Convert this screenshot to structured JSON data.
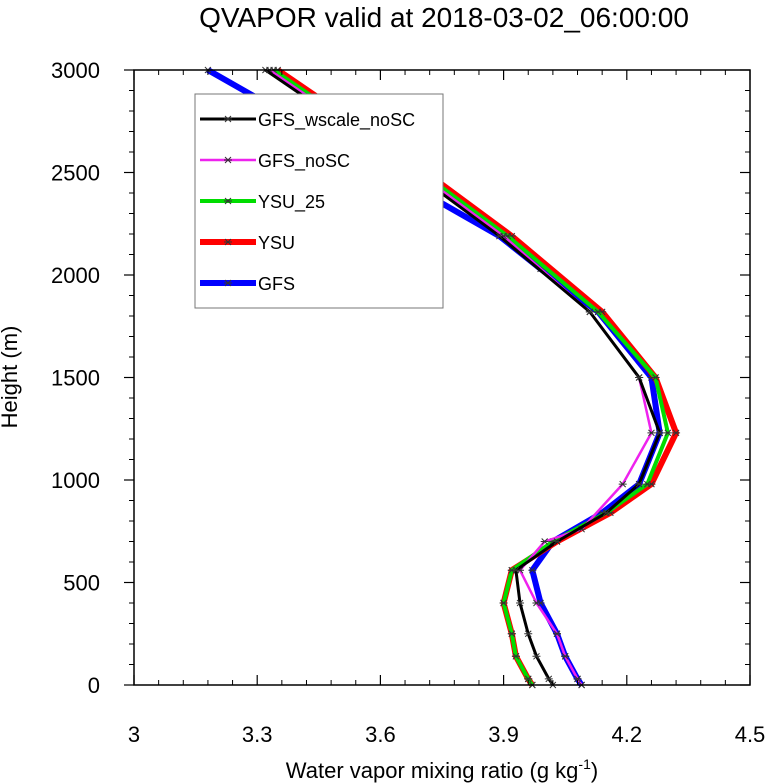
{
  "chart_data": {
    "type": "line",
    "title": "QVAPOR valid at 2018-03-02_06:00:00",
    "xlabel": "Water vapor mixing ratio (g kg",
    "xlabel_sup": "-1",
    "xlabel_end": ")",
    "ylabel": "Height (m)",
    "xlim": [
      3.0,
      4.5
    ],
    "ylim": [
      0,
      3000
    ],
    "xticks": [
      3.0,
      3.3,
      3.6,
      3.9,
      4.2,
      4.5
    ],
    "xtick_labels": [
      "3",
      "3.3",
      "3.6",
      "3.9",
      "4.2",
      "4.5"
    ],
    "yticks": [
      0,
      500,
      1000,
      1500,
      2000,
      2500,
      3000
    ],
    "ytick_labels": [
      "0",
      "500",
      "1000",
      "1500",
      "2000",
      "2500",
      "3000"
    ],
    "grid": false,
    "legend_position": "top-left inside",
    "series": [
      {
        "name": "GFS",
        "color": "#0000ff",
        "points": [
          [
            4.09,
            0
          ],
          [
            4.08,
            30
          ],
          [
            4.05,
            140
          ],
          [
            4.03,
            250
          ],
          [
            3.99,
            400
          ],
          [
            3.97,
            560
          ],
          [
            4.02,
            700
          ],
          [
            4.14,
            840
          ],
          [
            4.23,
            980
          ],
          [
            4.28,
            1230
          ],
          [
            4.26,
            1500
          ],
          [
            4.13,
            1820
          ],
          [
            3.99,
            2030
          ],
          [
            3.89,
            2190
          ],
          [
            3.18,
            3000
          ]
        ]
      },
      {
        "name": "YSU",
        "color": "#ff0000",
        "points": [
          [
            3.97,
            0
          ],
          [
            3.96,
            30
          ],
          [
            3.93,
            140
          ],
          [
            3.92,
            250
          ],
          [
            3.9,
            400
          ],
          [
            3.92,
            560
          ],
          [
            4.03,
            700
          ],
          [
            4.16,
            840
          ],
          [
            4.26,
            980
          ],
          [
            4.32,
            1230
          ],
          [
            4.27,
            1500
          ],
          [
            4.14,
            1820
          ],
          [
            3.92,
            2190
          ],
          [
            3.65,
            2590
          ],
          [
            3.35,
            3000
          ]
        ]
      },
      {
        "name": "YSU_25",
        "color": "#00dd00",
        "points": [
          [
            3.97,
            0
          ],
          [
            3.96,
            30
          ],
          [
            3.93,
            140
          ],
          [
            3.92,
            250
          ],
          [
            3.9,
            400
          ],
          [
            3.92,
            560
          ],
          [
            4.02,
            700
          ],
          [
            4.15,
            840
          ],
          [
            4.25,
            980
          ],
          [
            4.3,
            1230
          ],
          [
            4.27,
            1500
          ],
          [
            4.13,
            1820
          ],
          [
            3.91,
            2190
          ],
          [
            3.64,
            2590
          ],
          [
            3.34,
            3000
          ]
        ]
      },
      {
        "name": "GFS_noSC",
        "color": "#ee22ee",
        "points": [
          [
            4.09,
            0
          ],
          [
            4.08,
            30
          ],
          [
            4.05,
            140
          ],
          [
            4.03,
            250
          ],
          [
            3.98,
            400
          ],
          [
            3.94,
            560
          ],
          [
            4.0,
            700
          ],
          [
            4.09,
            760
          ],
          [
            4.19,
            980
          ],
          [
            4.26,
            1230
          ],
          [
            4.23,
            1500
          ],
          [
            4.11,
            1820
          ],
          [
            3.9,
            2190
          ],
          [
            3.63,
            2590
          ],
          [
            3.33,
            3000
          ]
        ]
      },
      {
        "name": "GFS_wscale_noSC",
        "color": "#000000",
        "points": [
          [
            4.02,
            0
          ],
          [
            4.01,
            30
          ],
          [
            3.98,
            140
          ],
          [
            3.96,
            250
          ],
          [
            3.94,
            400
          ],
          [
            3.93,
            560
          ],
          [
            4.03,
            700
          ],
          [
            4.15,
            840
          ],
          [
            4.23,
            980
          ],
          [
            4.28,
            1230
          ],
          [
            4.23,
            1500
          ],
          [
            4.11,
            1820
          ],
          [
            3.89,
            2190
          ],
          [
            3.62,
            2590
          ],
          [
            3.32,
            3000
          ]
        ]
      }
    ],
    "legend_order": [
      "GFS_wscale_noSC",
      "GFS_noSC",
      "YSU_25",
      "YSU",
      "GFS"
    ]
  }
}
